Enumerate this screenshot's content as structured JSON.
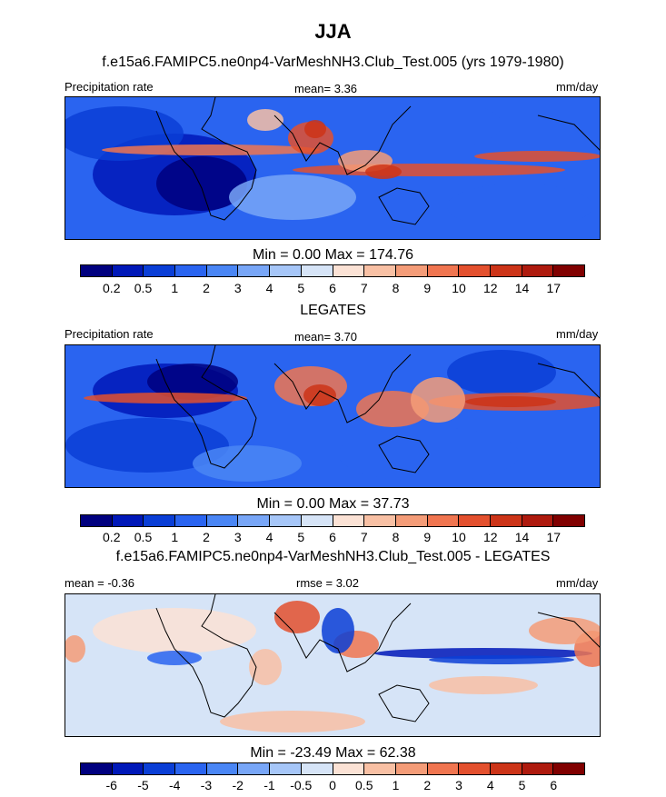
{
  "header": {
    "season": "JJA",
    "model_title": "f.e15a6.FAMIPC5.ne0np4-VarMeshNH3.Club_Test.005 (yrs 1979-1980)"
  },
  "panels": [
    {
      "id": "model",
      "left_label": "Precipitation rate",
      "center_label": "mean=   3.36",
      "right_label": "mm/day",
      "minmax": "Min =   0.00 Max = 174.76"
    },
    {
      "id": "obs",
      "title": "LEGATES",
      "left_label": "Precipitation rate",
      "center_label": "mean=   3.70",
      "right_label": "mm/day",
      "minmax": "Min =   0.00 Max =  37.73"
    },
    {
      "id": "diff",
      "title": "f.e15a6.FAMIPC5.ne0np4-VarMeshNH3.Club_Test.005 - LEGATES",
      "left_label": "mean =  -0.36",
      "center_label": "rmse =   3.02",
      "right_label": "mm/day",
      "minmax": "Min = -23.49 Max =  62.38"
    }
  ],
  "chart_data": [
    {
      "type": "heatmap",
      "title": "f.e15a6.FAMIPC5.ne0np4-VarMeshNH3.Club_Test.005 (yrs 1979-1980)",
      "variable": "Precipitation rate",
      "units": "mm/day",
      "mean": 3.36,
      "min": 0.0,
      "max": 174.76,
      "colorbar_levels": [
        "0.2",
        "0.5",
        "1",
        "2",
        "3",
        "4",
        "5",
        "6",
        "7",
        "8",
        "9",
        "10",
        "12",
        "14",
        "17"
      ],
      "colorbar_colors": [
        "#00007f",
        "#0018b8",
        "#0a3ed6",
        "#2a64f0",
        "#4a86f5",
        "#78a6f7",
        "#a6c6f8",
        "#d6e4f7",
        "#fbe2d5",
        "#f8c0a4",
        "#f49c78",
        "#f07550",
        "#e3502e",
        "#cc3418",
        "#ae1a0e",
        "#800000"
      ]
    },
    {
      "type": "heatmap",
      "title": "LEGATES",
      "variable": "Precipitation rate",
      "units": "mm/day",
      "mean": 3.7,
      "min": 0.0,
      "max": 37.73,
      "colorbar_levels": [
        "0.2",
        "0.5",
        "1",
        "2",
        "3",
        "4",
        "5",
        "6",
        "7",
        "8",
        "9",
        "10",
        "12",
        "14",
        "17"
      ],
      "colorbar_colors": [
        "#00007f",
        "#0018b8",
        "#0a3ed6",
        "#2a64f0",
        "#4a86f5",
        "#78a6f7",
        "#a6c6f8",
        "#d6e4f7",
        "#fbe2d5",
        "#f8c0a4",
        "#f49c78",
        "#f07550",
        "#e3502e",
        "#cc3418",
        "#ae1a0e",
        "#800000"
      ]
    },
    {
      "type": "heatmap",
      "title": "f.e15a6.FAMIPC5.ne0np4-VarMeshNH3.Club_Test.005 - LEGATES",
      "units": "mm/day",
      "mean": -0.36,
      "rmse": 3.02,
      "min": -23.49,
      "max": 62.38,
      "colorbar_levels": [
        "-6",
        "-5",
        "-4",
        "-3",
        "-2",
        "-1",
        "-0.5",
        "0",
        "0.5",
        "1",
        "2",
        "3",
        "4",
        "5",
        "6"
      ],
      "colorbar_colors": [
        "#00007f",
        "#0018b8",
        "#0a3ed6",
        "#2a64f0",
        "#4a86f5",
        "#78a6f7",
        "#a6c6f8",
        "#d6e4f7",
        "#fbe2d5",
        "#f8c0a4",
        "#f49c78",
        "#f07550",
        "#e3502e",
        "#cc3418",
        "#ae1a0e",
        "#800000"
      ]
    }
  ]
}
